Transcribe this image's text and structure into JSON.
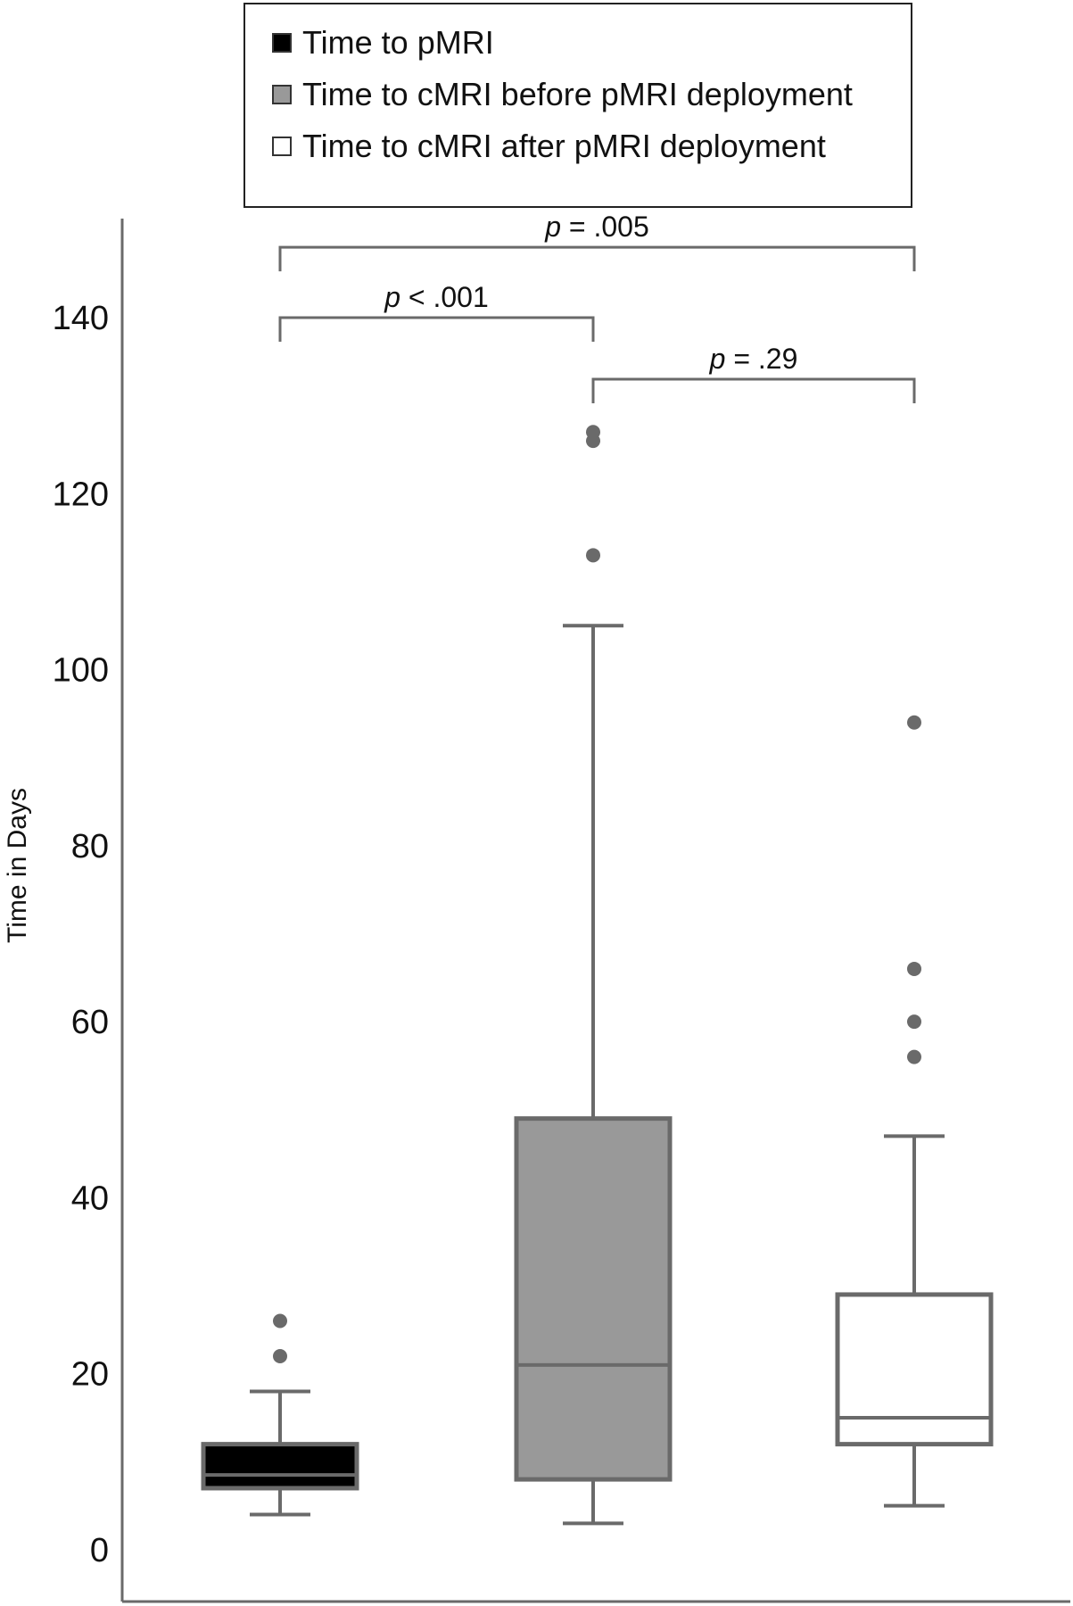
{
  "chart_data": {
    "type": "box",
    "ylabel": "Time in Days",
    "xlabel": "",
    "ylim": [
      -3,
      152
    ],
    "yticks": [
      0,
      20,
      40,
      60,
      80,
      100,
      120,
      140
    ],
    "series": [
      {
        "name": "Time to pMRI",
        "color": "#000000",
        "min": 4,
        "q1": 7,
        "median": 8.5,
        "q3": 12,
        "max": 18,
        "outliers": [
          22,
          26
        ]
      },
      {
        "name": "Time to cMRI before pMRI deployment",
        "color": "#999999",
        "min": 3,
        "q1": 8,
        "median": 21,
        "q3": 49,
        "max": 105,
        "outliers": [
          113,
          126,
          127
        ]
      },
      {
        "name": "Time to cMRI after pMRI deployment",
        "color": "#ffffff",
        "min": 5,
        "q1": 12,
        "median": 15,
        "q3": 29,
        "max": 47,
        "outliers": [
          56,
          60,
          66,
          94
        ]
      }
    ],
    "comparisons": [
      {
        "from": 0,
        "to": 2,
        "label": "p = .005",
        "p_italic": "p",
        "rest": " = .005",
        "y": 148
      },
      {
        "from": 0,
        "to": 1,
        "label": "p < .001",
        "p_italic": "p",
        "rest": " < .001",
        "y": 140
      },
      {
        "from": 1,
        "to": 2,
        "label": "p = .29",
        "p_italic": "p",
        "rest": " = .29",
        "y": 133
      }
    ]
  }
}
